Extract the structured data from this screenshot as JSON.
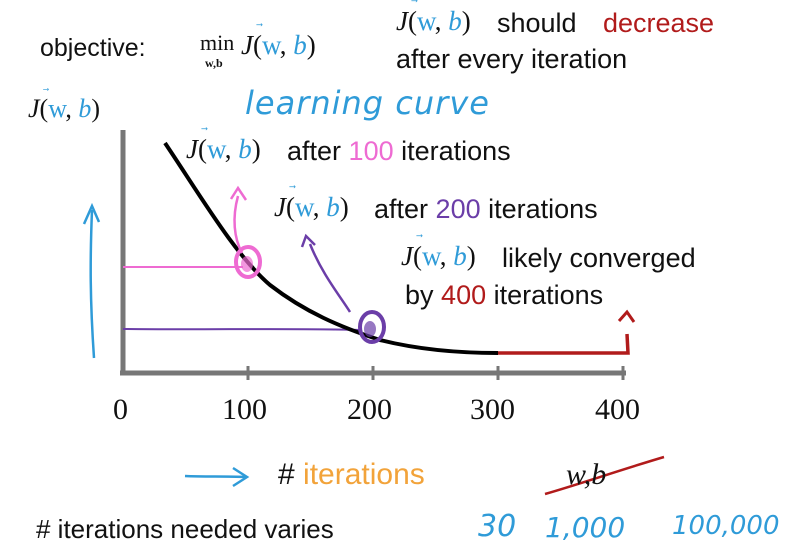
{
  "header": {
    "objective_label": "objective:",
    "objective_min": "min",
    "objective_min_sub": "w,b",
    "objective_J": "J",
    "objective_w": "w",
    "objective_b": "b",
    "rule_J": "J",
    "rule_w": "w",
    "rule_b": "b",
    "rule_should": "should",
    "rule_decrease": "decrease",
    "rule_line2": "after every iteration"
  },
  "chart": {
    "y_axis_J": "J",
    "y_axis_w": "w",
    "y_axis_b": "b",
    "handwritten_title": "learning curve",
    "x_ticks": [
      "0",
      "100",
      "200",
      "300",
      "400"
    ],
    "x_axis_hash": "#",
    "x_axis_label": "iterations",
    "crossed_out": "w,b"
  },
  "annotations": {
    "a100_J": "J",
    "a100_w": "w",
    "a100_b": "b",
    "a100_pre": "after",
    "a100_num": "100",
    "a100_post": "iterations",
    "a200_J": "J",
    "a200_w": "w",
    "a200_b": "b",
    "a200_pre": "after",
    "a200_num": "200",
    "a200_post": "iterations",
    "a400_J": "J",
    "a400_w": "w",
    "a400_b": "b",
    "a400_line1": "likely converged",
    "a400_pre": "by",
    "a400_num": "400",
    "a400_post": "iterations"
  },
  "footer": {
    "label": "# iterations needed varies",
    "examples": [
      "30",
      "1,000",
      "100,000"
    ]
  },
  "colors": {
    "blue": "#2f9bd8",
    "pink": "#ee6bd2",
    "purple": "#6b3ea8",
    "red": "#b11b1b",
    "orange": "#f2a33a",
    "ink": "#111111"
  }
}
